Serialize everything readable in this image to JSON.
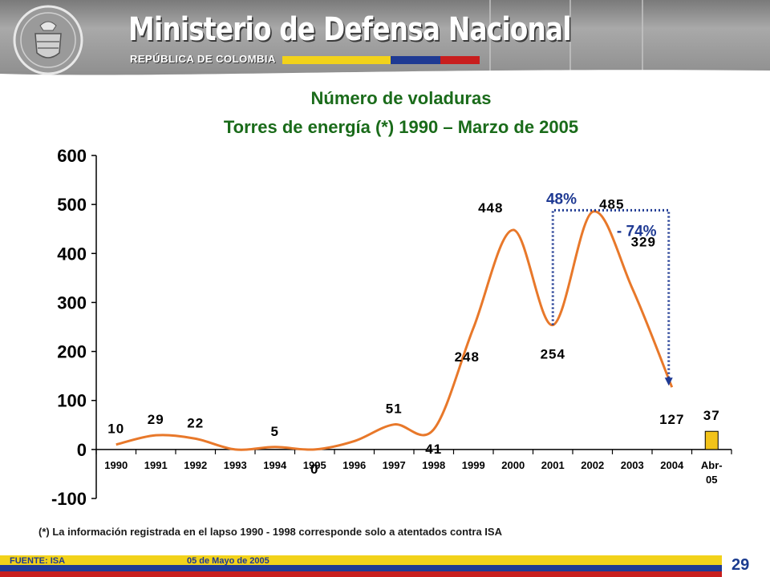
{
  "header": {
    "ministry": "Ministerio de Defensa Nacional",
    "republic": "REPÚBLICA DE COLOMBIA",
    "seal_icon": "coat-of-arms-seal-icon",
    "flag_colors": [
      "#f2d21a",
      "#1f3a93",
      "#c81e1e"
    ]
  },
  "chart_data": {
    "type": "line",
    "title": "Número de voladuras",
    "subtitle": "Torres de energía (*) 1990 – Marzo de 2005",
    "categories": [
      "1990",
      "1991",
      "1992",
      "1993",
      "1994",
      "1995",
      "1996",
      "1997",
      "1998",
      "1999",
      "2000",
      "2001",
      "2002",
      "2003",
      "2004",
      "Abr-05"
    ],
    "series": [
      {
        "values": [
          10,
          29,
          22,
          0,
          5,
          0,
          17,
          51,
          41,
          248,
          448,
          254,
          485,
          329,
          127,
          null
        ],
        "color": "#e8782a"
      }
    ],
    "bar": {
      "category": "Abr-05",
      "value": 37,
      "color": "#f2c31a"
    },
    "data_labels": [
      {
        "i": 0,
        "text": "10"
      },
      {
        "i": 1,
        "text": "29"
      },
      {
        "i": 2,
        "text": "22"
      },
      {
        "i": 4,
        "text": "5"
      },
      {
        "i": 5,
        "text": "0"
      },
      {
        "i": 7,
        "text": "51"
      },
      {
        "i": 8,
        "text": "41"
      },
      {
        "i": 9,
        "text": "248"
      },
      {
        "i": 10,
        "text": "448"
      },
      {
        "i": 11,
        "text": "254"
      },
      {
        "i": 12,
        "text": "485"
      },
      {
        "i": 13,
        "text": "329"
      },
      {
        "i": 14,
        "text": "127"
      },
      {
        "i": 15,
        "text": "37"
      }
    ],
    "ylim": [
      -100,
      600
    ],
    "yticks": [
      -100,
      0,
      100,
      200,
      300,
      400,
      500,
      600
    ],
    "grid": false,
    "annotations": [
      {
        "text": "48%",
        "color": "#1f3a93",
        "from": "2001",
        "to": "2002"
      },
      {
        "text": "- 74%",
        "color": "#1f3a93",
        "from": "2002",
        "to": "2004"
      }
    ]
  },
  "footnote": "(*) La información registrada en el lapso 1990 - 1998 corresponde solo a atentados contra ISA",
  "footer": {
    "source": "FUENTE: ISA",
    "date": "05 de Mayo de 2005",
    "page": "29"
  }
}
